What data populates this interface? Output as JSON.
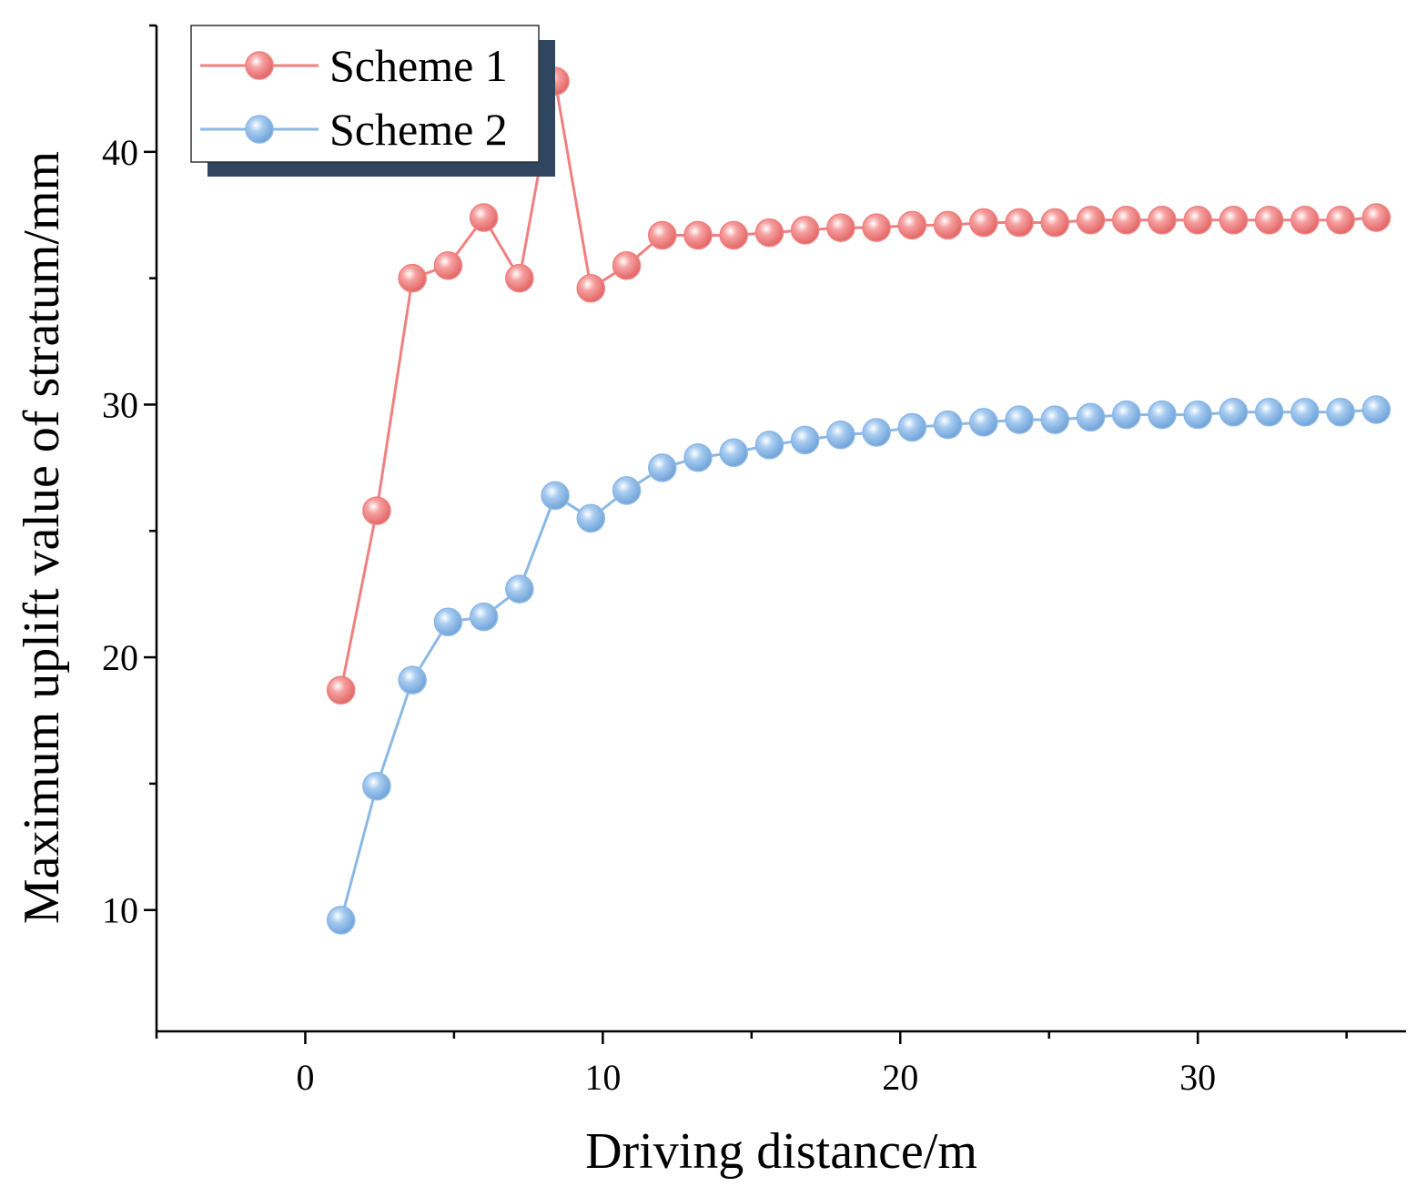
{
  "chart_data": {
    "type": "line",
    "title": "",
    "xlabel": "Driving distance/m",
    "ylabel": "Maximum uplift value of stratum/mm",
    "xlim": [
      -5,
      37
    ],
    "ylim": [
      5.2,
      45
    ],
    "xticks": [
      0,
      10,
      20,
      30
    ],
    "yticks": [
      10,
      20,
      30,
      40
    ],
    "grid": false,
    "legend_position": "top-left",
    "x": [
      1.2,
      2.4,
      3.6,
      4.8,
      6.0,
      7.2,
      8.4,
      9.6,
      10.8,
      12.0,
      13.2,
      14.4,
      15.6,
      16.8,
      18.0,
      19.2,
      20.4,
      21.6,
      22.8,
      24.0,
      25.2,
      26.4,
      27.6,
      28.8,
      30.0,
      31.2,
      32.4,
      33.6,
      34.8,
      36.0
    ],
    "series": [
      {
        "name": "Scheme 1",
        "color": "#f08080",
        "values": [
          18.7,
          25.8,
          35.0,
          35.5,
          37.4,
          35.0,
          42.8,
          34.6,
          35.5,
          36.7,
          36.7,
          36.7,
          36.8,
          36.9,
          37.0,
          37.0,
          37.1,
          37.1,
          37.2,
          37.2,
          37.2,
          37.3,
          37.3,
          37.3,
          37.3,
          37.3,
          37.3,
          37.3,
          37.3,
          37.4
        ]
      },
      {
        "name": "Scheme 2",
        "color": "#8cb8e6",
        "values": [
          9.6,
          14.9,
          19.1,
          21.4,
          21.6,
          22.7,
          26.4,
          25.5,
          26.6,
          27.5,
          27.9,
          28.1,
          28.4,
          28.6,
          28.8,
          28.9,
          29.1,
          29.2,
          29.3,
          29.4,
          29.4,
          29.5,
          29.6,
          29.6,
          29.6,
          29.7,
          29.7,
          29.7,
          29.7,
          29.8
        ]
      }
    ]
  }
}
